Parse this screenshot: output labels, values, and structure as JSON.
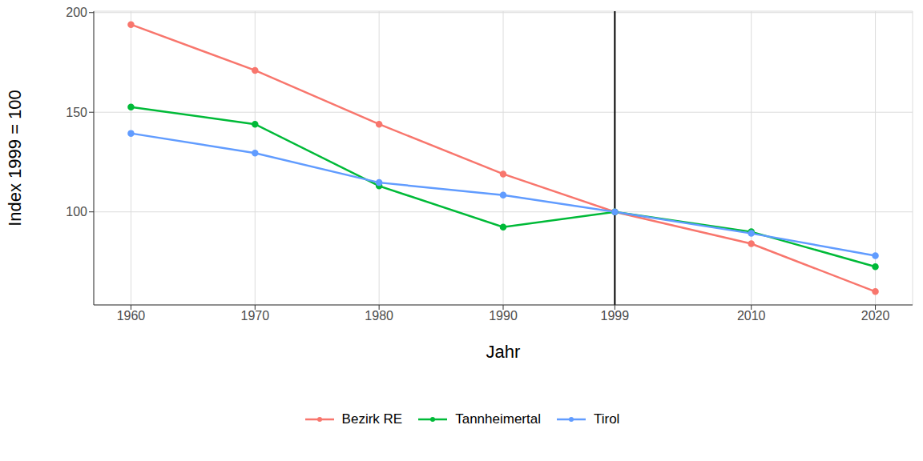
{
  "chart_data": {
    "type": "line",
    "x_label": "Jahr",
    "y_label": "Index 1999 = 100",
    "x": [
      1960,
      1970,
      1980,
      1990,
      1999,
      2010,
      2020
    ],
    "series": [
      {
        "name": "Bezirk RE",
        "color": "#F8766D",
        "values": [
          194,
          171,
          144,
          119,
          100,
          84,
          60
        ]
      },
      {
        "name": "Tannheimertal",
        "color": "#00BA38",
        "values": [
          152.6,
          144,
          113,
          92.4,
          100,
          90,
          72.5
        ]
      },
      {
        "name": "Tirol",
        "color": "#619CFF",
        "values": [
          139.4,
          129.5,
          114.7,
          108.4,
          100,
          89.2,
          78
        ]
      }
    ],
    "xlim": [
      1957,
      2023
    ],
    "xticks": [
      1960,
      1970,
      1980,
      1990,
      1999,
      2010,
      2020
    ],
    "ylim": [
      53.3,
      200.7
    ],
    "yticks": [
      100,
      150,
      200
    ],
    "vertical_line": 1999,
    "grid": true,
    "legend": "bottom",
    "marker": "circle"
  }
}
